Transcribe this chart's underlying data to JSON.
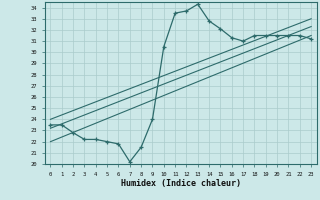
{
  "title": "",
  "xlabel": "Humidex (Indice chaleur)",
  "bg_color": "#cce8e8",
  "grid_color": "#aacccc",
  "line_color": "#2d6b6b",
  "xlim": [
    -0.5,
    23.5
  ],
  "ylim": [
    20,
    34.5
  ],
  "xticks": [
    0,
    1,
    2,
    3,
    4,
    5,
    6,
    7,
    8,
    9,
    10,
    11,
    12,
    13,
    14,
    15,
    16,
    17,
    18,
    19,
    20,
    21,
    22,
    23
  ],
  "yticks": [
    20,
    21,
    22,
    23,
    24,
    25,
    26,
    27,
    28,
    29,
    30,
    31,
    32,
    33,
    34
  ],
  "humidex_curve_x": [
    0,
    1,
    2,
    3,
    4,
    5,
    6,
    7,
    8,
    9,
    10,
    11,
    12,
    13,
    14,
    15,
    16,
    17,
    18,
    19,
    20,
    21,
    22,
    23
  ],
  "humidex_curve_y": [
    23.5,
    23.5,
    22.8,
    22.2,
    22.2,
    22.0,
    21.8,
    20.2,
    21.5,
    24.0,
    30.5,
    33.5,
    33.7,
    34.3,
    32.8,
    32.1,
    31.3,
    31.0,
    31.5,
    31.5,
    31.5,
    31.5,
    31.5,
    31.2
  ],
  "line1_x": [
    0,
    23
  ],
  "line1_y": [
    22.0,
    31.5
  ],
  "line2_x": [
    0,
    23
  ],
  "line2_y": [
    23.2,
    32.3
  ],
  "line3_x": [
    0,
    23
  ],
  "line3_y": [
    24.0,
    33.0
  ]
}
